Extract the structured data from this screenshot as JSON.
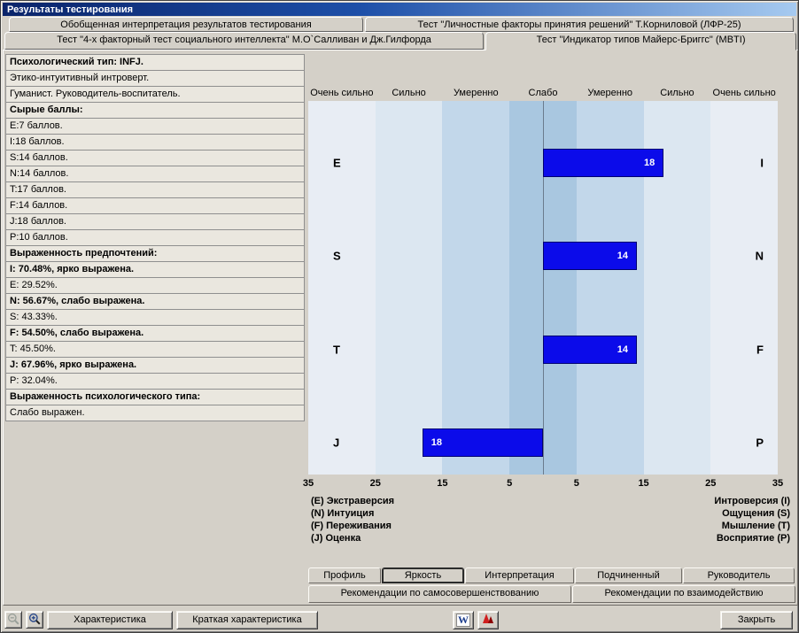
{
  "window": {
    "title": "Результаты тестирования"
  },
  "tabs_top": {
    "row1": [
      "Обобщенная интерпретация результатов тестирования",
      "Тест \"Личностные факторы принятия решений\" Т.Корниловой (ЛФР-25)"
    ],
    "row2": [
      "Тест \"4-х факторный тест социального интеллекта\" М.О`Салливан и Дж.Гилфорда",
      "Тест \"Индикатор типов Майерс-Бриггс\" (MBTI)"
    ],
    "active": "Тест \"Индикатор типов Майерс-Бриггс\" (MBTI)"
  },
  "left_panel": {
    "rows": [
      {
        "text": "Психологический тип: INFJ.",
        "bold": true
      },
      {
        "text": "Этико-интуитивный интроверт.",
        "bold": false
      },
      {
        "text": "Гуманист. Руководитель-воспитатель.",
        "bold": false
      },
      {
        "text": "Сырые баллы:",
        "bold": true
      },
      {
        "text": "E:7 баллов.",
        "bold": false
      },
      {
        "text": "I:18 баллов.",
        "bold": false
      },
      {
        "text": "S:14 баллов.",
        "bold": false
      },
      {
        "text": "N:14 баллов.",
        "bold": false
      },
      {
        "text": "T:17 баллов.",
        "bold": false
      },
      {
        "text": "F:14 баллов.",
        "bold": false
      },
      {
        "text": "J:18 баллов.",
        "bold": false
      },
      {
        "text": "P:10 баллов.",
        "bold": false
      },
      {
        "text": "Выраженность предпочтений:",
        "bold": true
      },
      {
        "text": "I: 70.48%, ярко выражена.",
        "bold": true
      },
      {
        "text": "E: 29.52%.",
        "bold": false
      },
      {
        "text": "N: 56.67%, слабо выражена.",
        "bold": true
      },
      {
        "text": "S: 43.33%.",
        "bold": false
      },
      {
        "text": "F: 54.50%, слабо выражена.",
        "bold": true
      },
      {
        "text": "T: 45.50%.",
        "bold": false
      },
      {
        "text": "J: 67.96%, ярко выражена.",
        "bold": true
      },
      {
        "text": "P: 32.04%.",
        "bold": false
      },
      {
        "text": "Выраженность психологического типа:",
        "bold": true
      },
      {
        "text": "Слабо выражен.",
        "bold": false
      }
    ]
  },
  "chart_data": {
    "type": "bar",
    "orientation": "horizontal-diverging",
    "axis_max": 35,
    "tick_values": [
      35,
      25,
      15,
      5
    ],
    "intensity_labels": [
      "Очень сильно",
      "Сильно",
      "Умеренно",
      "Слабо",
      "Умеренно",
      "Сильно",
      "Очень сильно"
    ],
    "rows": [
      {
        "left": "E",
        "right": "I",
        "side": "right",
        "value": 18
      },
      {
        "left": "S",
        "right": "N",
        "side": "right",
        "value": 14
      },
      {
        "left": "T",
        "right": "F",
        "side": "right",
        "value": 14
      },
      {
        "left": "J",
        "right": "P",
        "side": "left",
        "value": 18
      }
    ],
    "bar_color": "#0b0bea",
    "band_colors": [
      "#e8edf4",
      "#dce7f1",
      "#c2d7ea",
      "#a9c7e0"
    ],
    "legend_left": [
      "(E) Экстраверсия",
      "(N) Интуиция",
      "(F) Переживания",
      "(J) Оценка"
    ],
    "legend_right": [
      "Интроверсия (I)",
      "Ощущения (S)",
      "Мышление (T)",
      "Восприятие (P)"
    ]
  },
  "bottom_tabs": {
    "row1": [
      "Профиль",
      "Яркость",
      "Интерпретация",
      "Подчиненный",
      "Руководитель"
    ],
    "active": "Яркость",
    "row2": [
      "Рекомендации по самосовершенствованию",
      "Рекомендации по взаимодействию"
    ]
  },
  "toolbar": {
    "zoom_out_icon": "magnifier-minus",
    "zoom_in_icon": "magnifier-plus",
    "characteristic": "Характеристика",
    "brief_characteristic": "Краткая характеристика",
    "word_icon": "W",
    "red_icon": "red-logo",
    "close": "Закрыть"
  }
}
